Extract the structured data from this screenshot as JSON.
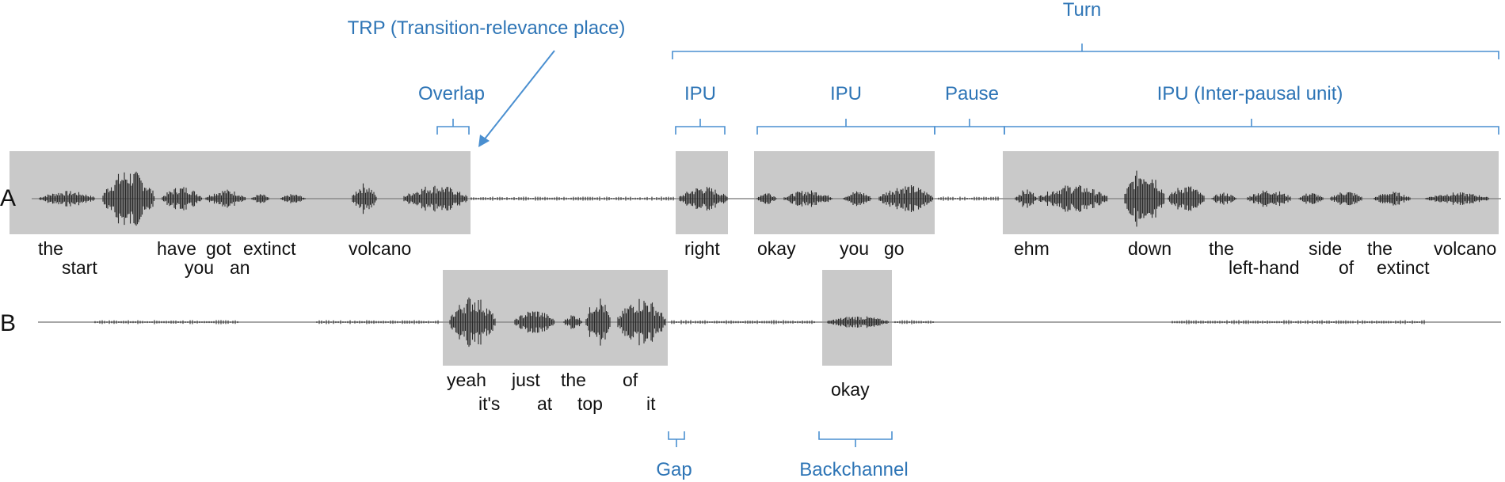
{
  "colors": {
    "annotation": "#2e75b6",
    "region": "#c9c9c9",
    "waveform": "#2a2a2a"
  },
  "speakers": {
    "a": "A",
    "b": "B"
  },
  "annotations": {
    "turn": "Turn",
    "trp": "TRP (Transition-relevance place)",
    "overlap": "Overlap",
    "ipu1": "IPU",
    "ipu2": "IPU",
    "pause": "Pause",
    "ipu3": "IPU (Inter-pausal unit)",
    "gap": "Gap",
    "backchannel": "Backchannel"
  },
  "words_a": {
    "top": [
      "the",
      "have",
      "got",
      "extinct",
      "volcano",
      "right",
      "okay",
      "you",
      "go",
      "ehm",
      "down",
      "the",
      "side",
      "the",
      "volcano"
    ],
    "bottom": [
      "start",
      "you",
      "an",
      "left-hand",
      "of",
      "extinct"
    ]
  },
  "words_b": {
    "top": [
      "yeah",
      "just",
      "the",
      "of",
      "okay"
    ],
    "bottom": [
      "it's",
      "at",
      "top",
      "it"
    ]
  }
}
